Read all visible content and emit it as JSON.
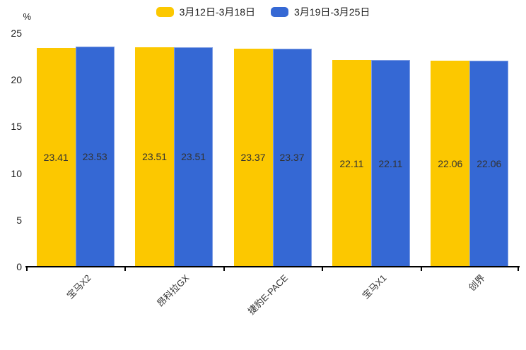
{
  "chart_data": {
    "type": "bar",
    "title": "",
    "ylabel": "%",
    "xlabel": "",
    "categories": [
      "宝马X2",
      "昂科拉GX",
      "捷豹E-PACE",
      "宝马X1",
      "创界"
    ],
    "series": [
      {
        "name": "3月12日-3月18日",
        "color": "#fcc800",
        "values": [
          23.41,
          23.51,
          23.37,
          22.11,
          22.06
        ]
      },
      {
        "name": "3月19日-3月25日",
        "color": "#3568d4",
        "values": [
          23.53,
          23.51,
          23.37,
          22.11,
          22.06
        ]
      }
    ],
    "ylim": [
      0,
      25
    ],
    "yticks": [
      0,
      5,
      10,
      15,
      20,
      25
    ],
    "grid": false,
    "legend_position": "top",
    "value_labels": "inside-middle",
    "value_label_decimals": 2
  },
  "colors": {
    "series1": "#fcc800",
    "series2": "#3568d4",
    "series2_border": "#7e9de3",
    "axis": "#000000",
    "text": "#1f1f1f",
    "bar_label_text": "#333333"
  }
}
